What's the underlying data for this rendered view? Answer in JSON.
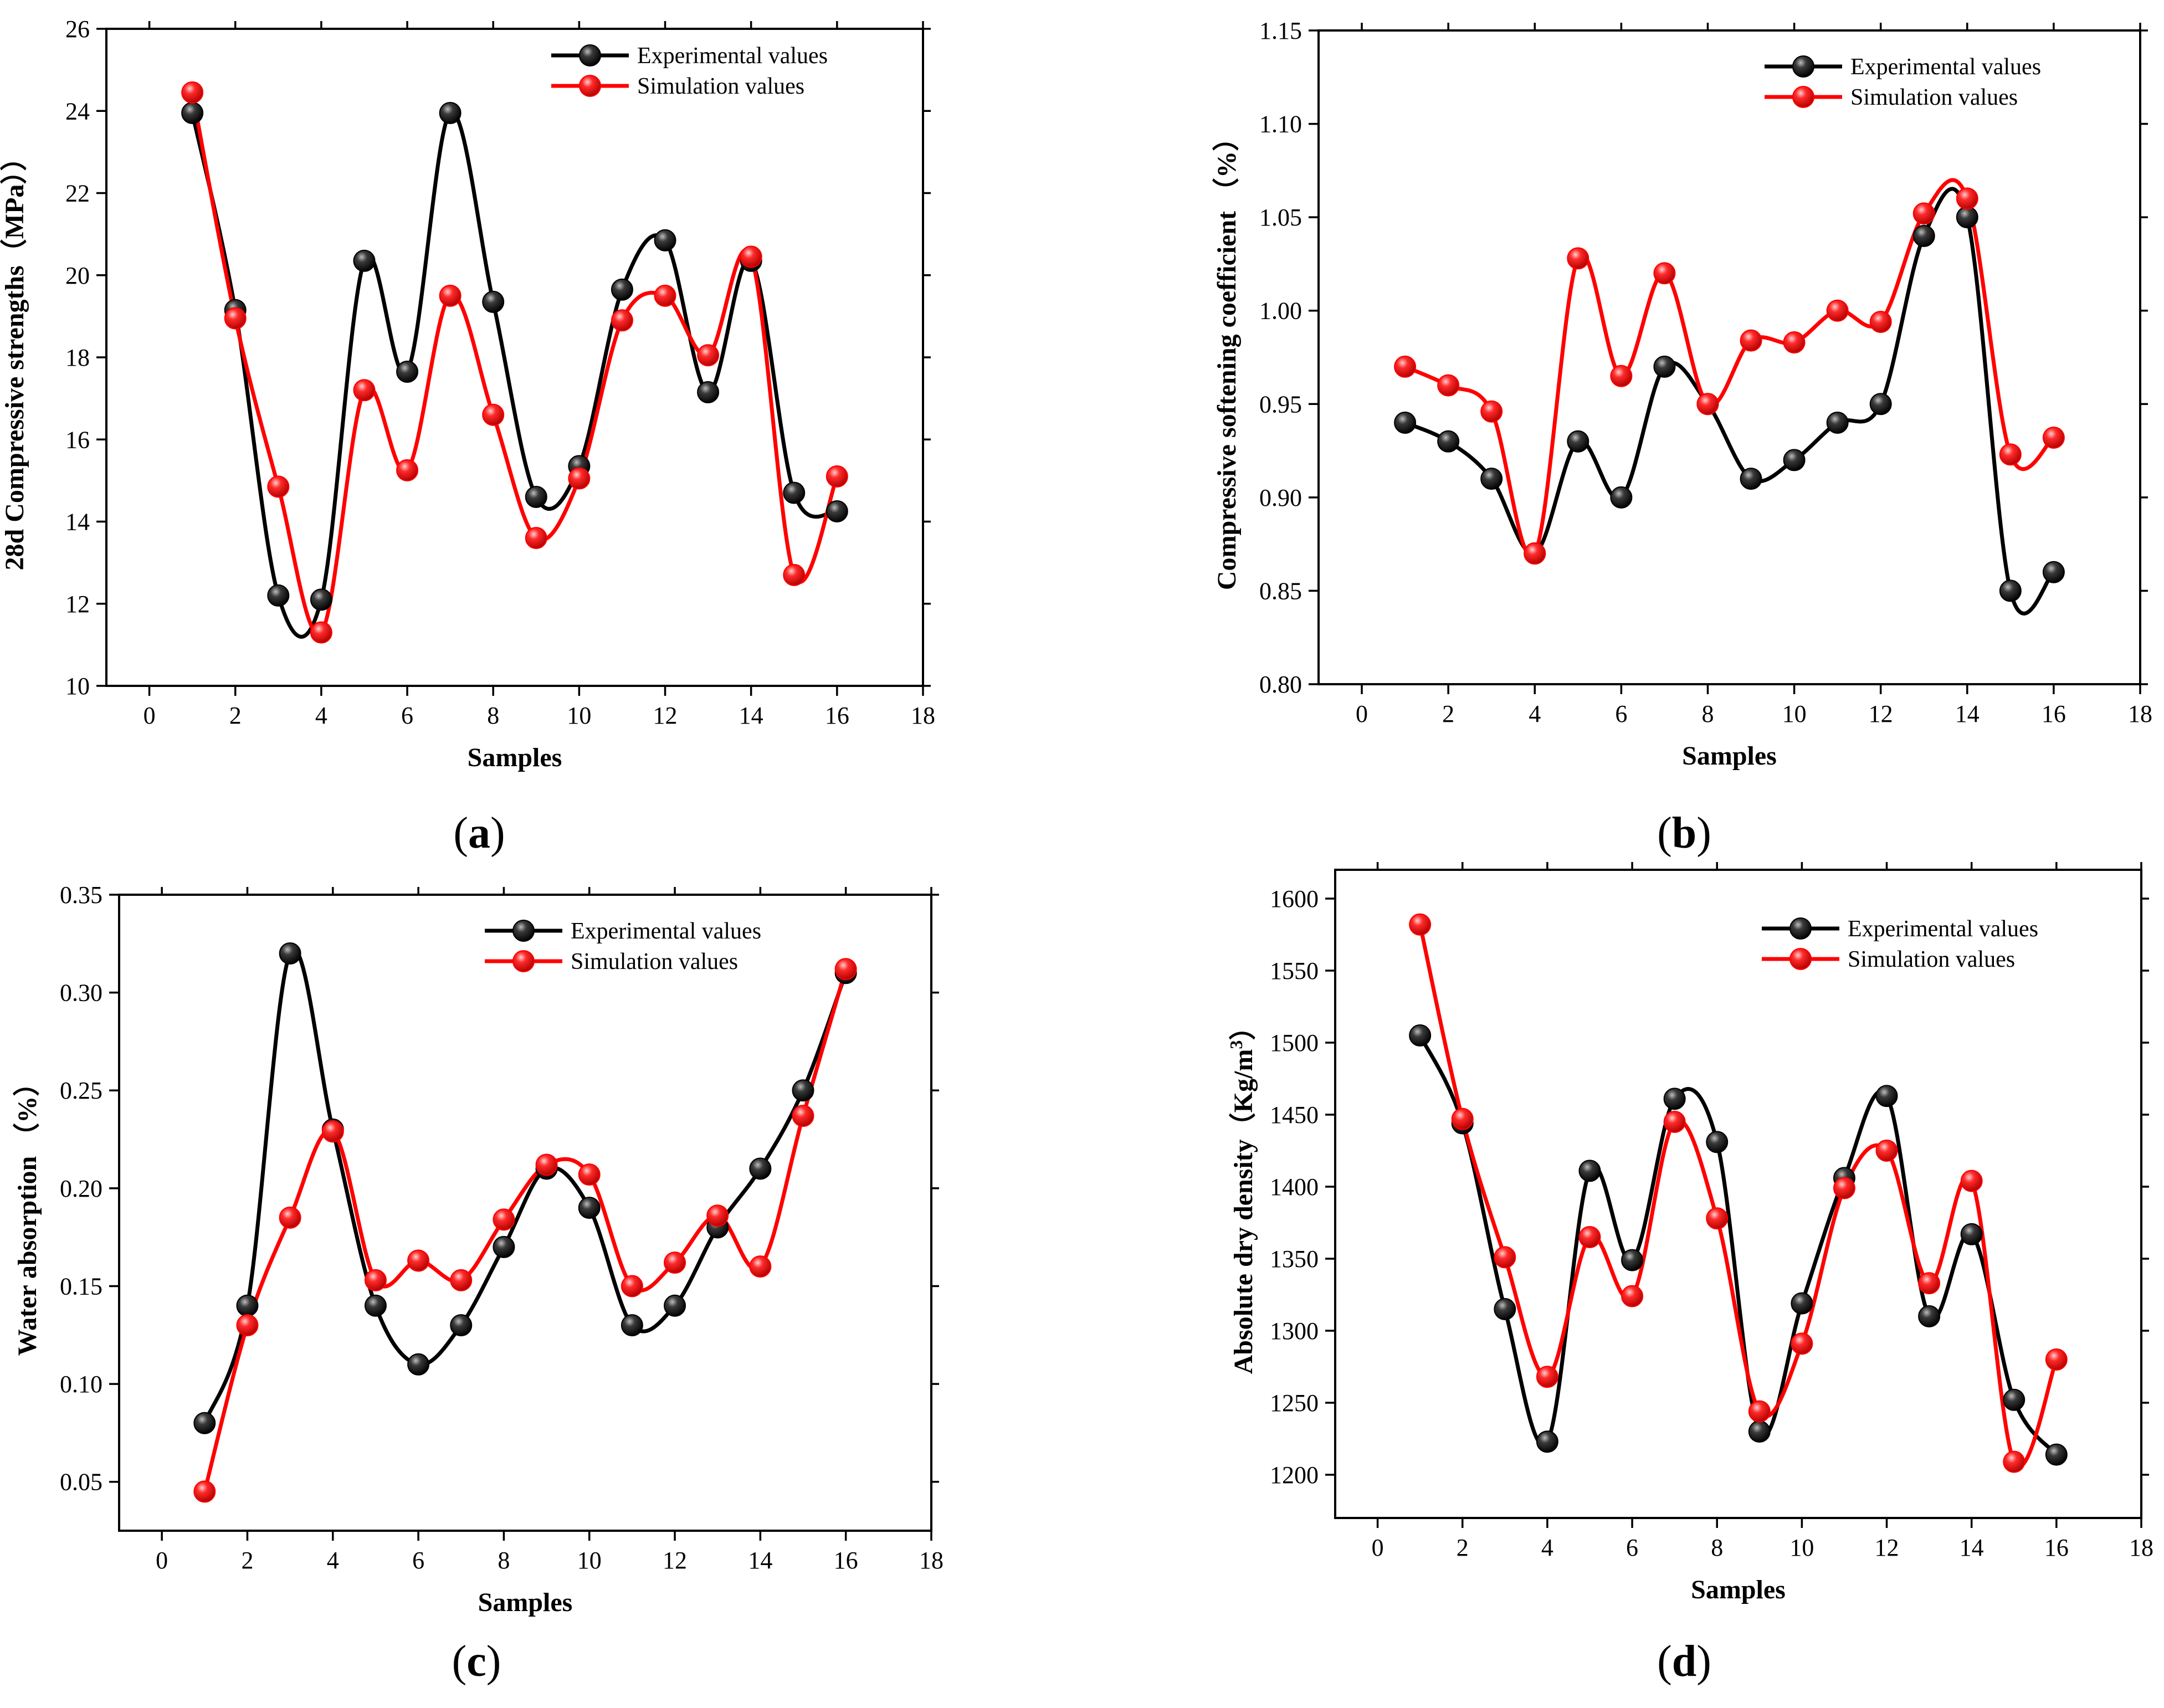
{
  "figure": {
    "panels": [
      "a",
      "b",
      "c",
      "d"
    ]
  },
  "colors": {
    "experimental": "#000000",
    "simulation": "#ff0000"
  },
  "chart_data": [
    {
      "id": "a",
      "type": "line",
      "panel_label": "a",
      "xlabel": "Samples",
      "ylabel": "28d Compressive strengths（MPa））",
      "xlim": [
        -1,
        18
      ],
      "ylim": [
        10,
        26
      ],
      "xticks": [
        0,
        2,
        4,
        6,
        8,
        10,
        12,
        14,
        16,
        18
      ],
      "yticks": [
        10,
        12,
        14,
        16,
        18,
        20,
        22,
        24,
        26
      ],
      "ytick_labels": [
        "10",
        "12",
        "14",
        "16",
        "18",
        "20",
        "22",
        "24",
        "26"
      ],
      "legend_position": "top-right",
      "x": [
        1,
        2,
        3,
        4,
        5,
        6,
        7,
        8,
        9,
        10,
        11,
        12,
        13,
        14,
        15,
        16
      ],
      "series": [
        {
          "name": "Experimental values",
          "color": "#000000",
          "values": [
            23.95,
            19.15,
            12.2,
            12.1,
            20.35,
            17.65,
            23.95,
            19.35,
            14.6,
            15.35,
            19.65,
            20.85,
            17.15,
            20.35,
            14.7,
            14.25
          ]
        },
        {
          "name": "Simulation values",
          "color": "#ff0000",
          "values": [
            24.45,
            18.95,
            14.85,
            11.3,
            17.2,
            15.25,
            19.5,
            16.6,
            13.6,
            15.05,
            18.9,
            19.5,
            18.05,
            20.45,
            12.7,
            15.1
          ]
        }
      ]
    },
    {
      "id": "b",
      "type": "line",
      "panel_label": "b",
      "xlabel": "Samples",
      "ylabel": "Compressive softening coefficient （%）",
      "xlim": [
        -1,
        18
      ],
      "ylim": [
        0.8,
        1.15
      ],
      "xticks": [
        0,
        2,
        4,
        6,
        8,
        10,
        12,
        14,
        16,
        18
      ],
      "yticks": [
        0.8,
        0.85,
        0.9,
        0.95,
        1.0,
        1.05,
        1.1,
        1.15
      ],
      "ytick_labels": [
        "0.80",
        "0.85",
        "0.90",
        "0.95",
        "1.00",
        "1.05",
        "1.10",
        "1.15"
      ],
      "legend_position": "top-right",
      "x": [
        1,
        2,
        3,
        4,
        5,
        6,
        7,
        8,
        9,
        10,
        11,
        12,
        13,
        14,
        15,
        16
      ],
      "series": [
        {
          "name": "Experimental values",
          "color": "#000000",
          "values": [
            0.94,
            0.93,
            0.91,
            0.87,
            0.93,
            0.9,
            0.97,
            0.95,
            0.91,
            0.92,
            0.94,
            0.95,
            1.04,
            1.05,
            0.85,
            0.86
          ]
        },
        {
          "name": "Simulation values",
          "color": "#ff0000",
          "values": [
            0.97,
            0.96,
            0.946,
            0.87,
            1.028,
            0.965,
            1.02,
            0.95,
            0.984,
            0.983,
            1.0,
            0.994,
            1.052,
            1.06,
            0.923,
            0.932
          ]
        }
      ]
    },
    {
      "id": "c",
      "type": "line",
      "panel_label": "c",
      "xlabel": "Samples",
      "ylabel": "Water absorption （%）",
      "xlim": [
        -1,
        18
      ],
      "ylim": [
        0.025,
        0.35
      ],
      "xticks": [
        0,
        2,
        4,
        6,
        8,
        10,
        12,
        14,
        16,
        18
      ],
      "yticks": [
        0.05,
        0.1,
        0.15,
        0.2,
        0.25,
        0.3,
        0.35
      ],
      "ytick_labels": [
        "0.05",
        "0.10",
        "0.15",
        "0.20",
        "0.25",
        "0.30",
        "0.35"
      ],
      "legend_position": "top-right",
      "x": [
        1,
        2,
        3,
        4,
        5,
        6,
        7,
        8,
        9,
        10,
        11,
        12,
        13,
        14,
        15,
        16
      ],
      "series": [
        {
          "name": "Experimental values",
          "color": "#000000",
          "values": [
            0.08,
            0.14,
            0.32,
            0.23,
            0.14,
            0.11,
            0.13,
            0.17,
            0.21,
            0.19,
            0.13,
            0.14,
            0.18,
            0.21,
            0.25,
            0.31
          ]
        },
        {
          "name": "Simulation values",
          "color": "#ff0000",
          "values": [
            0.045,
            0.13,
            0.185,
            0.229,
            0.153,
            0.163,
            0.153,
            0.184,
            0.212,
            0.207,
            0.15,
            0.162,
            0.186,
            0.16,
            0.237,
            0.312
          ]
        }
      ]
    },
    {
      "id": "d",
      "type": "line",
      "panel_label": "d",
      "xlabel": "Samples",
      "ylabel": "Absolute dry density（Kg/m3）",
      "ylabel_main": "Absolute dry density（Kg/m",
      "ylabel_sup": "3",
      "ylabel_end": "）",
      "xlim": [
        -1,
        18
      ],
      "ylim": [
        1170,
        1620
      ],
      "xticks": [
        0,
        2,
        4,
        6,
        8,
        10,
        12,
        14,
        16,
        18
      ],
      "yticks": [
        1200,
        1250,
        1300,
        1350,
        1400,
        1450,
        1500,
        1550,
        1600
      ],
      "ytick_labels": [
        "1200",
        "1250",
        "1300",
        "1350",
        "1400",
        "1450",
        "1500",
        "1550",
        "1600"
      ],
      "legend_position": "top-right",
      "x": [
        1,
        2,
        3,
        4,
        5,
        6,
        7,
        8,
        9,
        10,
        11,
        12,
        13,
        14,
        15,
        16
      ],
      "series": [
        {
          "name": "Experimental values",
          "color": "#000000",
          "values": [
            1505,
            1444,
            1315,
            1223,
            1411,
            1349,
            1461,
            1431,
            1230,
            1319,
            1406,
            1463,
            1310,
            1367,
            1252,
            1214
          ]
        },
        {
          "name": "Simulation values",
          "color": "#ff0000",
          "values": [
            1582,
            1447,
            1351,
            1268,
            1365,
            1324,
            1445,
            1378,
            1244,
            1291,
            1399,
            1425,
            1333,
            1404,
            1209,
            1280
          ]
        }
      ]
    }
  ]
}
